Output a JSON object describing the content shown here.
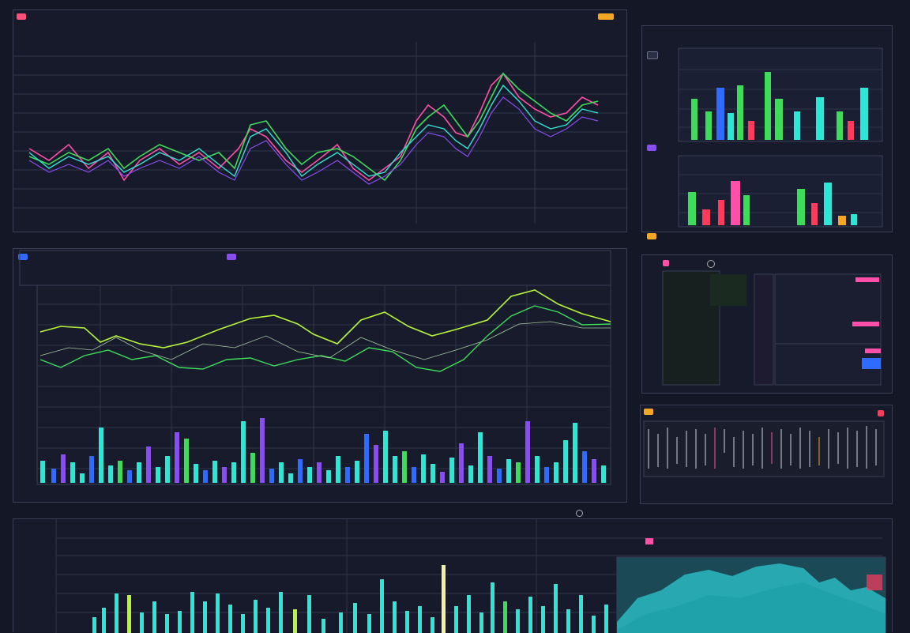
{
  "colors": {
    "background": "#141726",
    "panel_border": "#3a3f55",
    "grid": "#30354b",
    "cyan": "#2ee6d6",
    "green": "#3ddc5a",
    "magenta": "#ff4fa8",
    "purple": "#8a4df0",
    "blue": "#2f6bff",
    "yellow_green": "#b8f53a",
    "orange": "#f5a623",
    "red": "#ff3b5c"
  },
  "icons": [
    "status-badge-icon",
    "window-badge-icon",
    "legend-swatch-icon",
    "settings-icon",
    "radio-icon"
  ],
  "header": {
    "left_title": "",
    "left_subtitle": "",
    "right_title": ""
  }
}
